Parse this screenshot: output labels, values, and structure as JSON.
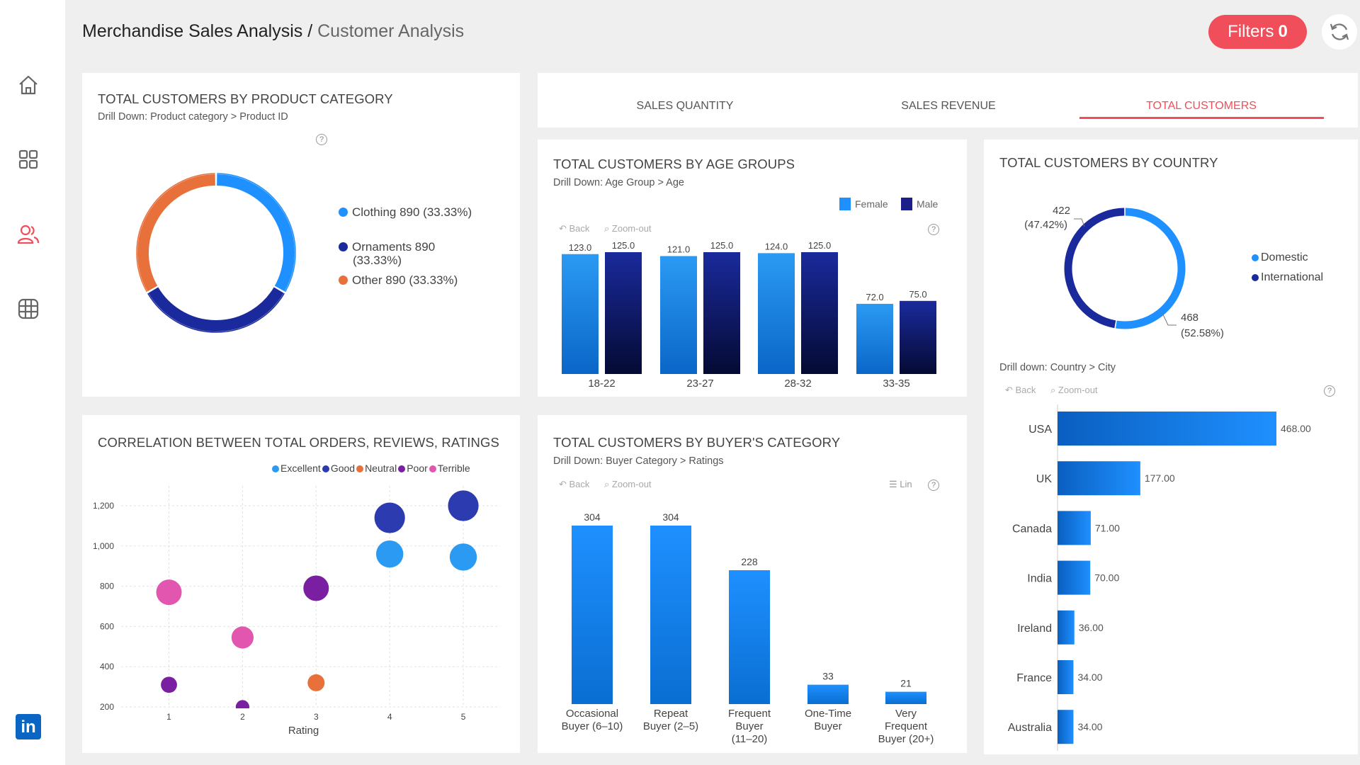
{
  "header": {
    "title_main": "Merchandise Sales Analysis /",
    "title_sub": "Customer Analysis",
    "filters_label": "Filters",
    "filters_count": "0"
  },
  "sidebar": {
    "items": [
      {
        "icon": "home-icon"
      },
      {
        "icon": "dashboard-icon"
      },
      {
        "icon": "users-icon",
        "active": true
      },
      {
        "icon": "table-grid-icon"
      }
    ],
    "logo": "in"
  },
  "tabs": [
    {
      "label": "SALES QUANTITY",
      "active": false
    },
    {
      "label": "SALES REVENUE",
      "active": false
    },
    {
      "label": "TOTAL CUSTOMERS",
      "active": true
    }
  ],
  "controls": {
    "back": "Back",
    "zoom_out": "Zoom-out",
    "lin": "Lin",
    "help": "?"
  },
  "product_category": {
    "title": "TOTAL CUSTOMERS BY PRODUCT CATEGORY",
    "drill": "Drill Down: Product category > Product ID",
    "legend": [
      {
        "label": "Clothing 890 (33.33%)",
        "color": "#1e90ff"
      },
      {
        "label": "Ornaments 890",
        "label2": "(33.33%)",
        "color": "#1a2a9c"
      },
      {
        "label": "Other 890 (33.33%)",
        "color": "#e8703a"
      }
    ]
  },
  "age_groups": {
    "title": "TOTAL CUSTOMERS BY AGE GROUPS",
    "drill": "Drill Down: Age Group > Age",
    "legend": [
      "Female",
      "Male"
    ]
  },
  "country": {
    "title": "TOTAL CUSTOMERS BY COUNTRY",
    "donut_labels": [
      {
        "value": "422",
        "pct": "(47.42%)"
      },
      {
        "value": "468",
        "pct": "(52.58%)"
      }
    ],
    "legend": [
      {
        "label": "Domestic",
        "color": "#1e90ff"
      },
      {
        "label": "International",
        "color": "#1a2a9c"
      }
    ],
    "drill": "Drill down: Country  > City"
  },
  "correlation": {
    "title": "CORRELATION BETWEEN TOTAL ORDERS, REVIEWS, RATINGS",
    "legend": [
      {
        "label": "Excellent",
        "color": "#2b9af3"
      },
      {
        "label": "Good",
        "color": "#2c3bb0"
      },
      {
        "label": "Neutral",
        "color": "#e8703a"
      },
      {
        "label": "Poor",
        "color": "#7b1fa2"
      },
      {
        "label": "Terrible",
        "color": "#e356b0"
      }
    ]
  },
  "buyer_category": {
    "title": "TOTAL CUSTOMERS BY BUYER'S CATEGORY",
    "drill": "Drill Down: Buyer Category > Ratings"
  },
  "chart_data": [
    {
      "id": "product-category-donut",
      "type": "pie",
      "donut": true,
      "series": [
        {
          "name": "Clothing",
          "value": 890,
          "color": "#1e90ff"
        },
        {
          "name": "Ornaments",
          "value": 890,
          "color": "#1a2a9c"
        },
        {
          "name": "Other",
          "value": 890,
          "color": "#e8703a"
        }
      ]
    },
    {
      "id": "age-groups-bar",
      "type": "bar",
      "categories": [
        "18-22",
        "23-27",
        "28-32",
        "33-35"
      ],
      "series": [
        {
          "name": "Female",
          "values": [
            123.0,
            121.0,
            124.0,
            72.0
          ],
          "color": "#1e90ff"
        },
        {
          "name": "Male",
          "values": [
            125.0,
            125.0,
            125.0,
            75.0
          ],
          "color": "#1a1f8a"
        }
      ],
      "value_labels": [
        [
          "123.0",
          "121.0",
          "124.0",
          "72.0"
        ],
        [
          "125.0",
          "125.0",
          "125.0",
          "75.0"
        ]
      ],
      "ylim": [
        0,
        125
      ]
    },
    {
      "id": "country-donut",
      "type": "pie",
      "donut": true,
      "series": [
        {
          "name": "Domestic",
          "value": 468,
          "color": "#1e90ff"
        },
        {
          "name": "International",
          "value": 422,
          "color": "#1a2a9c"
        }
      ]
    },
    {
      "id": "country-bar",
      "type": "bar",
      "orientation": "horizontal",
      "categories": [
        "USA",
        "UK",
        "Canada",
        "India",
        "Ireland",
        "France",
        "Australia"
      ],
      "values": [
        468,
        177,
        71,
        70,
        36,
        34,
        34
      ],
      "value_labels": [
        "468.00",
        "177.00",
        "71.00",
        "70.00",
        "36.00",
        "34.00",
        "34.00"
      ],
      "xlim": [
        0,
        468
      ]
    },
    {
      "id": "correlation-bubble",
      "type": "scatter",
      "xlabel": "Rating",
      "xticks": [
        "1",
        "2",
        "3",
        "4",
        "5"
      ],
      "yticks": [
        "200",
        "400",
        "600",
        "800",
        "1,000",
        "1,200"
      ],
      "xlim": [
        0.35,
        5.5
      ],
      "ylim": [
        200,
        1200
      ],
      "points": [
        {
          "x": 1,
          "y": 770,
          "r": 15,
          "series": "Terrible"
        },
        {
          "x": 1,
          "y": 310,
          "r": 9.5,
          "series": "Poor"
        },
        {
          "x": 2,
          "y": 545,
          "r": 13,
          "series": "Terrible"
        },
        {
          "x": 2,
          "y": 200,
          "r": 8,
          "series": "Poor"
        },
        {
          "x": 3,
          "y": 790,
          "r": 15,
          "series": "Poor"
        },
        {
          "x": 3,
          "y": 320,
          "r": 10,
          "series": "Neutral"
        },
        {
          "x": 4,
          "y": 1140,
          "r": 18,
          "series": "Good"
        },
        {
          "x": 4,
          "y": 960,
          "r": 16,
          "series": "Excellent"
        },
        {
          "x": 5,
          "y": 1200,
          "r": 18,
          "series": "Good"
        },
        {
          "x": 5,
          "y": 945,
          "r": 16,
          "series": "Excellent"
        }
      ]
    },
    {
      "id": "buyer-category-bar",
      "type": "bar",
      "categories": [
        [
          "Occasional",
          "Buyer (6–10)"
        ],
        [
          "Repeat",
          "Buyer (2–5)"
        ],
        [
          "Frequent",
          "Buyer",
          "(11–20)"
        ],
        [
          "One-Time",
          "Buyer"
        ],
        [
          "Very",
          "Frequent",
          "Buyer (20+)"
        ]
      ],
      "values": [
        304,
        304,
        228,
        33,
        21
      ],
      "value_labels": [
        "304",
        "304",
        "228",
        "33",
        "21"
      ],
      "ylim": [
        0,
        304
      ]
    }
  ]
}
